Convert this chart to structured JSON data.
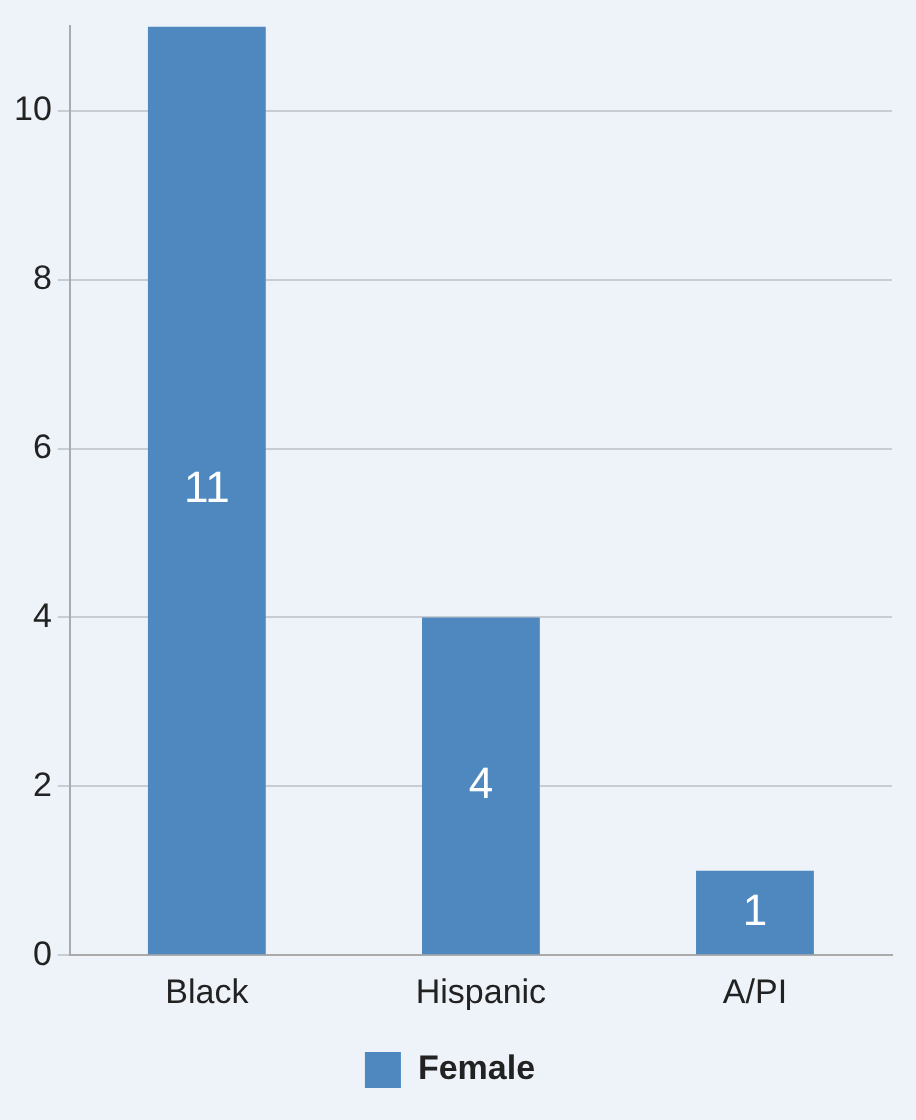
{
  "chart_data": {
    "type": "bar",
    "categories": [
      "Black",
      "Hispanic",
      "A/PI"
    ],
    "series": [
      {
        "name": "Female",
        "color": "#4e88be",
        "values": [
          11,
          4,
          1
        ]
      }
    ],
    "ylim": [
      0,
      11
    ],
    "yticks": [
      0,
      2,
      4,
      6,
      8,
      10
    ],
    "grid": "y",
    "legend": "bottom",
    "data_labels": true
  }
}
